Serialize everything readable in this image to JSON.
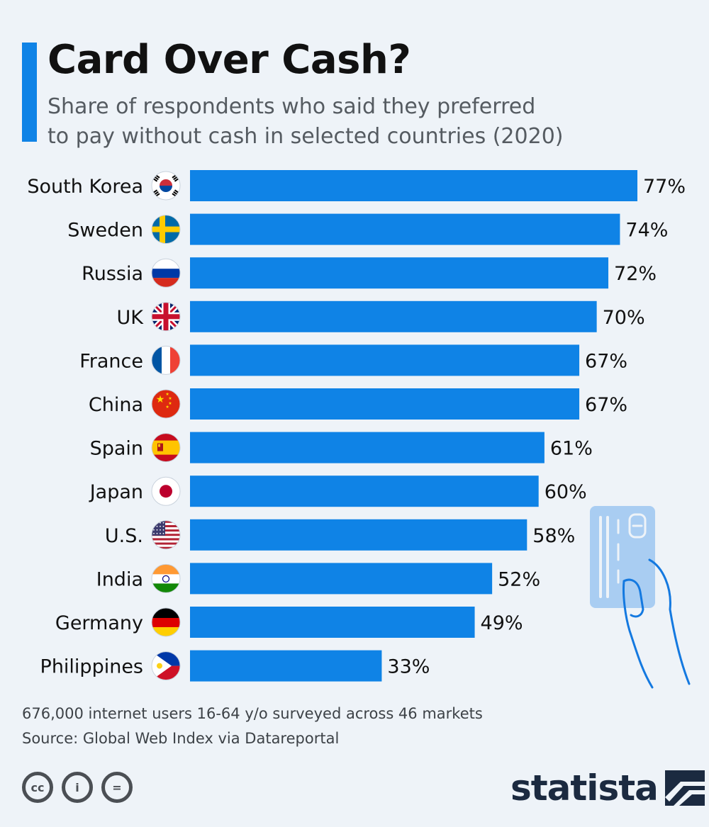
{
  "header": {
    "title": "Card Over Cash?",
    "subtitle_line1": "Share of respondents who said they preferred",
    "subtitle_line2": "to pay without cash in selected countries (2020)"
  },
  "footer": {
    "note": "676,000 internet users 16-64 y/o surveyed across 46 markets",
    "source": "Source: Global Web Index via Datareportal",
    "cc_label": "cc",
    "by_label": "i",
    "nd_label": "=",
    "brand": "statista"
  },
  "colors": {
    "bar": "#0f83e6",
    "accent": "#0f83e6",
    "background": "#eef3f8"
  },
  "chart_data": {
    "type": "bar",
    "orientation": "horizontal",
    "categories": [
      "South Korea",
      "Sweden",
      "Russia",
      "UK",
      "France",
      "China",
      "Spain",
      "Japan",
      "U.S.",
      "India",
      "Germany",
      "Philippines"
    ],
    "values": [
      77,
      74,
      72,
      70,
      67,
      67,
      61,
      60,
      58,
      52,
      49,
      33
    ],
    "value_labels": [
      "77%",
      "74%",
      "72%",
      "70%",
      "67%",
      "67%",
      "61%",
      "60%",
      "58%",
      "52%",
      "49%",
      "33%"
    ],
    "icons": [
      "flag-south-korea-icon",
      "flag-sweden-icon",
      "flag-russia-icon",
      "flag-uk-icon",
      "flag-france-icon",
      "flag-china-icon",
      "flag-spain-icon",
      "flag-japan-icon",
      "flag-us-icon",
      "flag-india-icon",
      "flag-germany-icon",
      "flag-philippines-icon"
    ],
    "unit": "%",
    "xlim": [
      0,
      77
    ],
    "grid": false,
    "legend": "none"
  }
}
